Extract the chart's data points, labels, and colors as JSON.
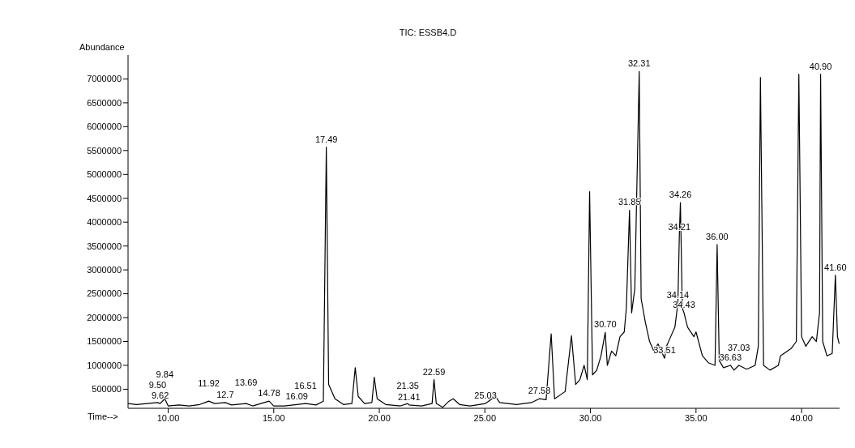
{
  "chart_data": {
    "type": "line",
    "title": "TIC: ESSB4.D",
    "xlabel": "Time-->",
    "ylabel": "Abundance",
    "x": [
      8.1,
      8.5,
      9.0,
      9.5,
      9.62,
      9.84,
      10.0,
      10.5,
      11.0,
      11.5,
      11.92,
      12.2,
      12.7,
      13.0,
      13.69,
      14.0,
      14.78,
      15.0,
      15.5,
      16.09,
      16.51,
      17.0,
      17.35,
      17.49,
      17.6,
      17.9,
      18.3,
      18.7,
      18.86,
      19.0,
      19.3,
      19.65,
      19.76,
      19.9,
      20.3,
      21.0,
      21.35,
      21.41,
      22.0,
      22.5,
      22.59,
      22.7,
      23.0,
      23.3,
      23.5,
      23.8,
      24.3,
      25.03,
      25.5,
      25.7,
      26.5,
      27.2,
      27.58,
      27.9,
      28.14,
      28.3,
      28.8,
      29.1,
      29.3,
      29.5,
      29.7,
      29.85,
      29.96,
      30.1,
      30.3,
      30.5,
      30.7,
      30.8,
      31.0,
      31.2,
      31.4,
      31.6,
      31.7,
      31.85,
      31.95,
      32.1,
      32.31,
      32.4,
      32.6,
      32.8,
      33.0,
      33.2,
      33.51,
      33.6,
      33.8,
      34.0,
      34.14,
      34.21,
      34.26,
      34.35,
      34.43,
      34.6,
      34.9,
      35.0,
      35.3,
      35.6,
      35.9,
      36.0,
      36.1,
      36.3,
      36.63,
      36.8,
      37.03,
      37.4,
      37.8,
      37.95,
      38.05,
      38.2,
      38.5,
      38.9,
      39.0,
      39.5,
      39.75,
      39.87,
      40.0,
      40.2,
      40.5,
      40.7,
      40.85,
      40.9,
      41.0,
      41.2,
      41.45,
      41.6,
      41.7,
      41.78
    ],
    "series": [
      {
        "color": "#000000",
        "values": [
          200000,
          180000,
          200000,
          220000,
          200000,
          300000,
          150000,
          170000,
          150000,
          180000,
          250000,
          200000,
          220000,
          170000,
          200000,
          150000,
          250000,
          150000,
          150000,
          180000,
          200000,
          170000,
          250000,
          5570000,
          600000,
          300000,
          180000,
          200000,
          950000,
          350000,
          200000,
          220000,
          750000,
          300000,
          180000,
          150000,
          200000,
          170000,
          150000,
          200000,
          700000,
          200000,
          120000,
          250000,
          300000,
          180000,
          150000,
          200000,
          350000,
          220000,
          180000,
          220000,
          300000,
          280000,
          1660000,
          300000,
          450000,
          1620000,
          600000,
          700000,
          1000000,
          700000,
          4640000,
          800000,
          900000,
          1200000,
          1690000,
          1000000,
          1300000,
          1200000,
          1600000,
          1700000,
          2200000,
          4250000,
          2100000,
          2600000,
          7160000,
          2400000,
          1900000,
          1500000,
          1300000,
          1450000,
          1150000,
          1400000,
          1600000,
          1800000,
          2300000,
          3730000,
          4410000,
          2200000,
          2100000,
          1800000,
          1600000,
          1700000,
          1200000,
          1050000,
          1000000,
          3530000,
          1100000,
          950000,
          1000000,
          900000,
          1000000,
          920000,
          1000000,
          1400000,
          7030000,
          1000000,
          900000,
          1000000,
          1200000,
          1350000,
          1500000,
          7100000,
          1600000,
          1400000,
          1600000,
          1500000,
          2100000,
          7100000,
          1500000,
          1200000,
          1250000,
          2890000,
          1600000,
          1450000
        ]
      }
    ],
    "xlim": [
      8.1,
      41.8
    ],
    "ylim": [
      100000,
      7500000
    ],
    "xticks": [
      {
        "value": 10,
        "label": "10.00"
      },
      {
        "value": 15,
        "label": "15.00"
      },
      {
        "value": 20,
        "label": "20.00"
      },
      {
        "value": 25,
        "label": "25.00"
      },
      {
        "value": 30,
        "label": "30.00"
      },
      {
        "value": 35,
        "label": "35.00"
      },
      {
        "value": 40,
        "label": "40.00"
      }
    ],
    "yticks": [
      500000,
      1000000,
      1500000,
      2000000,
      2500000,
      3000000,
      3500000,
      4000000,
      4500000,
      5000000,
      5500000,
      6000000,
      6500000,
      7000000
    ],
    "annotations": [
      {
        "text": "9.62",
        "x": 9.62,
        "y": 200000
      },
      {
        "text": "9.50",
        "x": 9.5,
        "y": 220000
      },
      {
        "text": "9.84",
        "x": 9.84,
        "y": 300000
      },
      {
        "text": "12.7",
        "x": 12.7,
        "y": 220000
      },
      {
        "text": "11.92",
        "x": 11.92,
        "y": 250000
      },
      {
        "text": "13.69",
        "x": 13.69,
        "y": 200000
      },
      {
        "text": "14.78",
        "x": 14.78,
        "y": 250000
      },
      {
        "text": "16.09",
        "x": 16.09,
        "y": 180000
      },
      {
        "text": "16.51",
        "x": 16.51,
        "y": 200000
      },
      {
        "text": "17.49",
        "x": 17.49,
        "y": 5570000
      },
      {
        "text": "21.41",
        "x": 21.41,
        "y": 170000
      },
      {
        "text": "21.35",
        "x": 21.35,
        "y": 200000
      },
      {
        "text": "22.59",
        "x": 22.59,
        "y": 700000
      },
      {
        "text": "25.03",
        "x": 25.03,
        "y": 200000
      },
      {
        "text": "27.58",
        "x": 27.58,
        "y": 300000
      },
      {
        "text": "30.70",
        "x": 30.7,
        "y": 1690000
      },
      {
        "text": "31.85",
        "x": 31.85,
        "y": 4250000
      },
      {
        "text": "32.31",
        "x": 32.31,
        "y": 7160000
      },
      {
        "text": "33.51",
        "x": 33.51,
        "y": 1150000
      },
      {
        "text": "34.43",
        "x": 34.43,
        "y": 2100000
      },
      {
        "text": "34.14",
        "x": 34.14,
        "y": 2300000
      },
      {
        "text": "34.21",
        "x": 34.21,
        "y": 3730000
      },
      {
        "text": "34.26",
        "x": 34.26,
        "y": 4410000
      },
      {
        "text": "36.00",
        "x": 36.0,
        "y": 3530000
      },
      {
        "text": "36.63",
        "x": 36.63,
        "y": 1000000
      },
      {
        "text": "37.03",
        "x": 37.03,
        "y": 1000000
      },
      {
        "text": "40.90",
        "x": 40.9,
        "y": 7100000
      },
      {
        "text": "41.60",
        "x": 41.6,
        "y": 2890000
      }
    ],
    "marker": "none",
    "line_style": "solid"
  }
}
